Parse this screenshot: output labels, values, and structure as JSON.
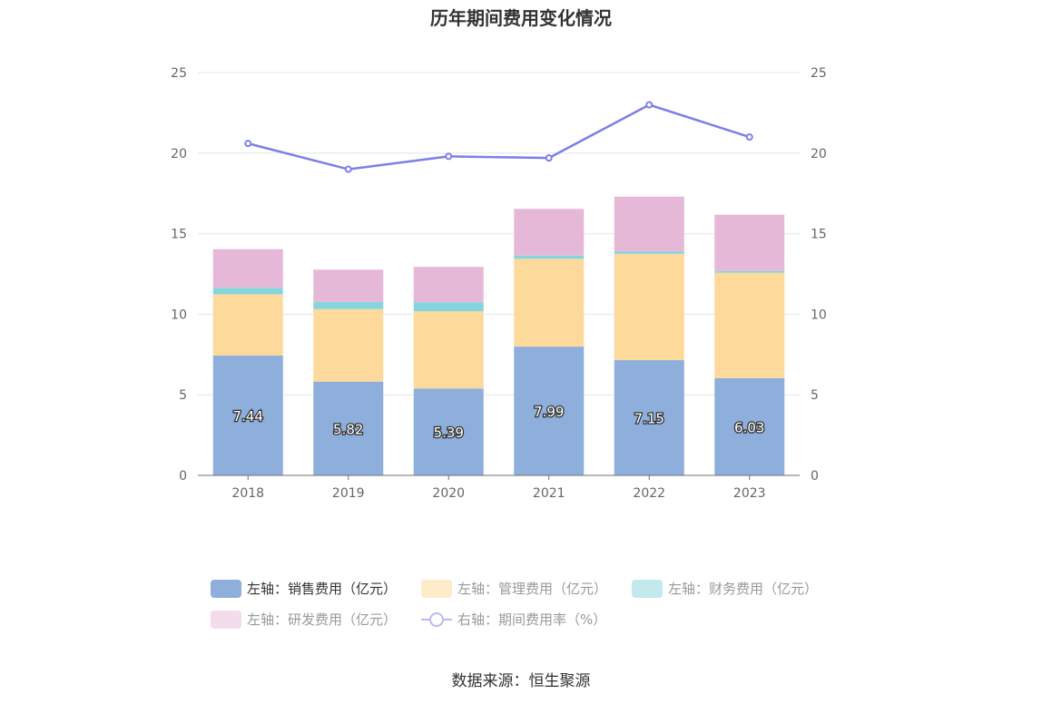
{
  "chart_data": {
    "type": "bar",
    "title": "历年期间费用变化情况",
    "categories": [
      "2018",
      "2019",
      "2020",
      "2021",
      "2022",
      "2023"
    ],
    "stacked": true,
    "left_axis": {
      "ylim": [
        0,
        25
      ],
      "ticks": [
        0,
        5,
        10,
        15,
        20,
        25
      ]
    },
    "right_axis": {
      "ylim": [
        0,
        25
      ],
      "ticks": [
        0,
        5,
        10,
        15,
        20,
        25
      ]
    },
    "series": [
      {
        "name": "左轴：销售费用（亿元）",
        "axis": "left",
        "kind": "bar",
        "color": "#8eaedb",
        "values": [
          7.44,
          5.82,
          5.39,
          7.99,
          7.15,
          6.03
        ],
        "show_labels": true
      },
      {
        "name": "左轴：管理费用（亿元）",
        "axis": "left",
        "kind": "bar",
        "color": "#fdd99b",
        "values": [
          3.8,
          4.5,
          4.8,
          5.45,
          6.6,
          6.55
        ]
      },
      {
        "name": "左轴：财务费用（亿元）",
        "axis": "left",
        "kind": "bar",
        "color": "#86d5dc",
        "values": [
          0.4,
          0.45,
          0.55,
          0.2,
          0.15,
          0.1
        ]
      },
      {
        "name": "左轴：研发费用（亿元）",
        "axis": "left",
        "kind": "bar",
        "color": "#e6b8d8",
        "values": [
          2.4,
          2.0,
          2.2,
          2.9,
          3.4,
          3.5
        ]
      },
      {
        "name": "右轴：期间费用率（%）",
        "axis": "right",
        "kind": "line",
        "color": "#7b7fe8",
        "values": [
          20.6,
          19.0,
          19.8,
          19.7,
          23.0,
          21.0
        ]
      }
    ],
    "legend_position": "bottom",
    "grid": true
  },
  "legend_text_colors": {
    "active": "#333333",
    "inactive": "#999999"
  },
  "legend_swatch_colors": [
    "#8eaedb",
    "#fdecc9",
    "#c3e9ec",
    "#f3dcec",
    "#7b7fe8"
  ],
  "source": "数据来源：恒生聚源"
}
